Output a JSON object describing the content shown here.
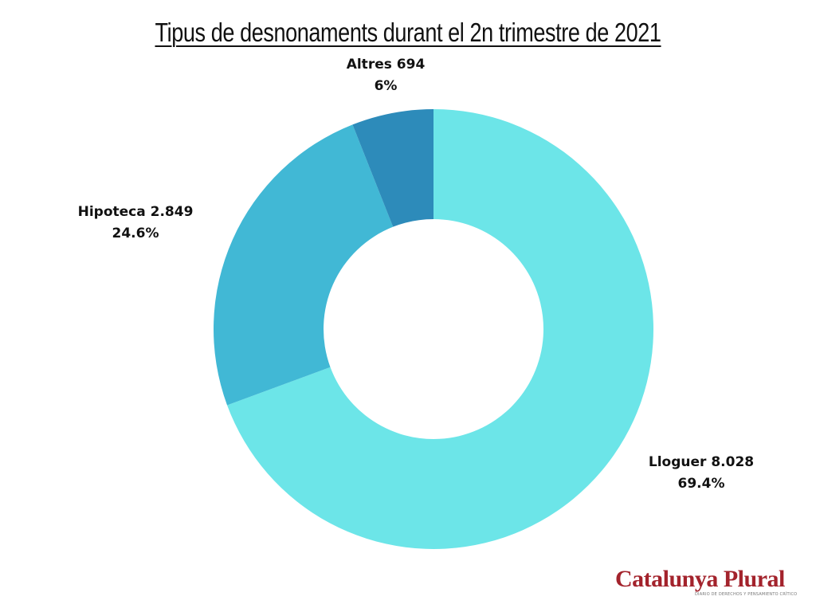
{
  "chart_data": {
    "type": "pie",
    "variant": "donut",
    "title": "Tipus de desnonaments durant el 2n trimestre de 2021",
    "slices": [
      {
        "name": "Lloguer",
        "value": 8028,
        "value_label": "8.028",
        "percent_label": "69.4%",
        "color": "#6ce5e8"
      },
      {
        "name": "Hipoteca",
        "value": 2849,
        "value_label": "2.849",
        "percent_label": "24.6%",
        "color": "#41b8d5"
      },
      {
        "name": "Altres",
        "value": 694,
        "value_label": "694",
        "percent_label": "6%",
        "color": "#2d8bba"
      }
    ],
    "start_angle_deg": 0,
    "direction": "clockwise",
    "legend": "none"
  },
  "branding": {
    "logo_name": "Catalunya Plural",
    "logo_tagline": "DIARIO DE DERECHOS Y PENSAMIENTO CRÍTICO"
  }
}
